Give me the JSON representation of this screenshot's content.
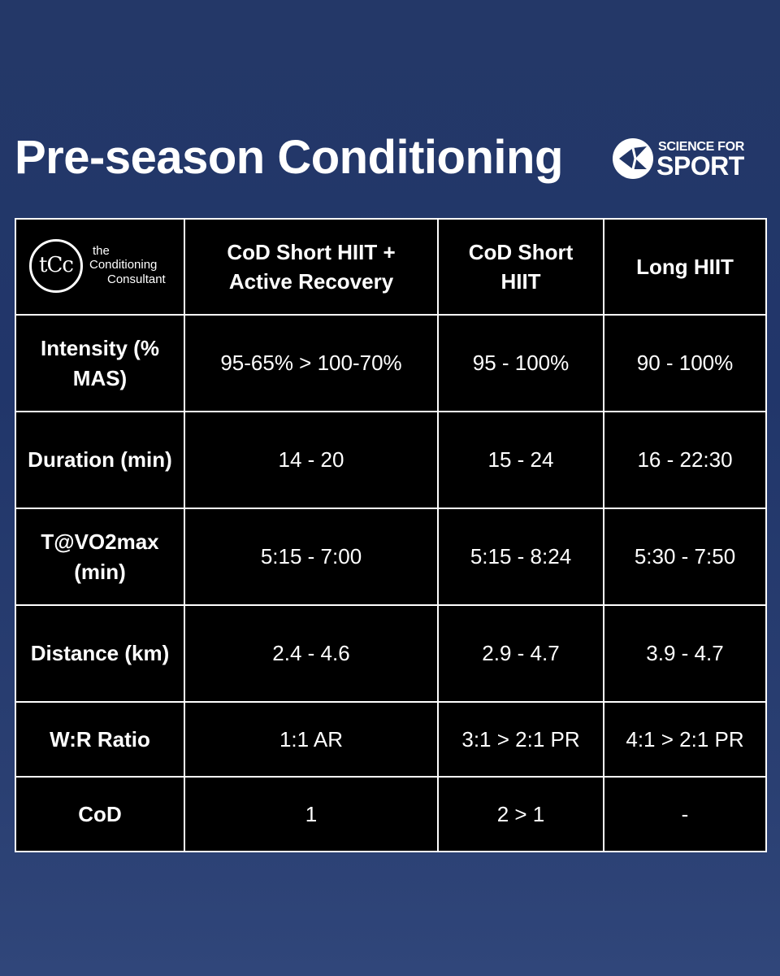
{
  "title": "Pre-season Conditioning",
  "brand": {
    "line1": "SCIENCE FOR",
    "line2": "SPORT",
    "icon": "science-for-sport-logo-icon"
  },
  "table_logo": {
    "mark": "tCc",
    "line1": "the",
    "line2": "Conditioning",
    "line3": "Consultant",
    "icon": "conditioning-consultant-logo-icon"
  },
  "colors": {
    "background": "#213566",
    "table_background": "#000000",
    "header_text": "#5db392",
    "body_text": "#ffffff",
    "border": "#ffffff"
  },
  "table": {
    "columns": [
      "CoD Short HIIT + Active Recovery",
      "CoD Short HIIT",
      "Long HIIT"
    ],
    "rows": [
      {
        "label": "Intensity (% MAS)",
        "cells": [
          "95-65% > 100-70%",
          "95 - 100%",
          "90 - 100%"
        ]
      },
      {
        "label": "Duration (min)",
        "cells": [
          "14 - 20",
          "15 - 24",
          "16 - 22:30"
        ]
      },
      {
        "label": "T@VO2max (min)",
        "cells": [
          "5:15 - 7:00",
          "5:15 - 8:24",
          "5:30 - 7:50"
        ]
      },
      {
        "label": "Distance (km)",
        "cells": [
          "2.4 - 4.6",
          "2.9 - 4.7",
          "3.9 - 4.7"
        ]
      },
      {
        "label": "W:R Ratio",
        "cells": [
          "1:1 AR",
          "3:1 > 2:1 PR",
          "4:1 > 2:1 PR"
        ]
      },
      {
        "label": "CoD",
        "cells": [
          "1",
          "2 > 1",
          "-"
        ]
      }
    ]
  }
}
